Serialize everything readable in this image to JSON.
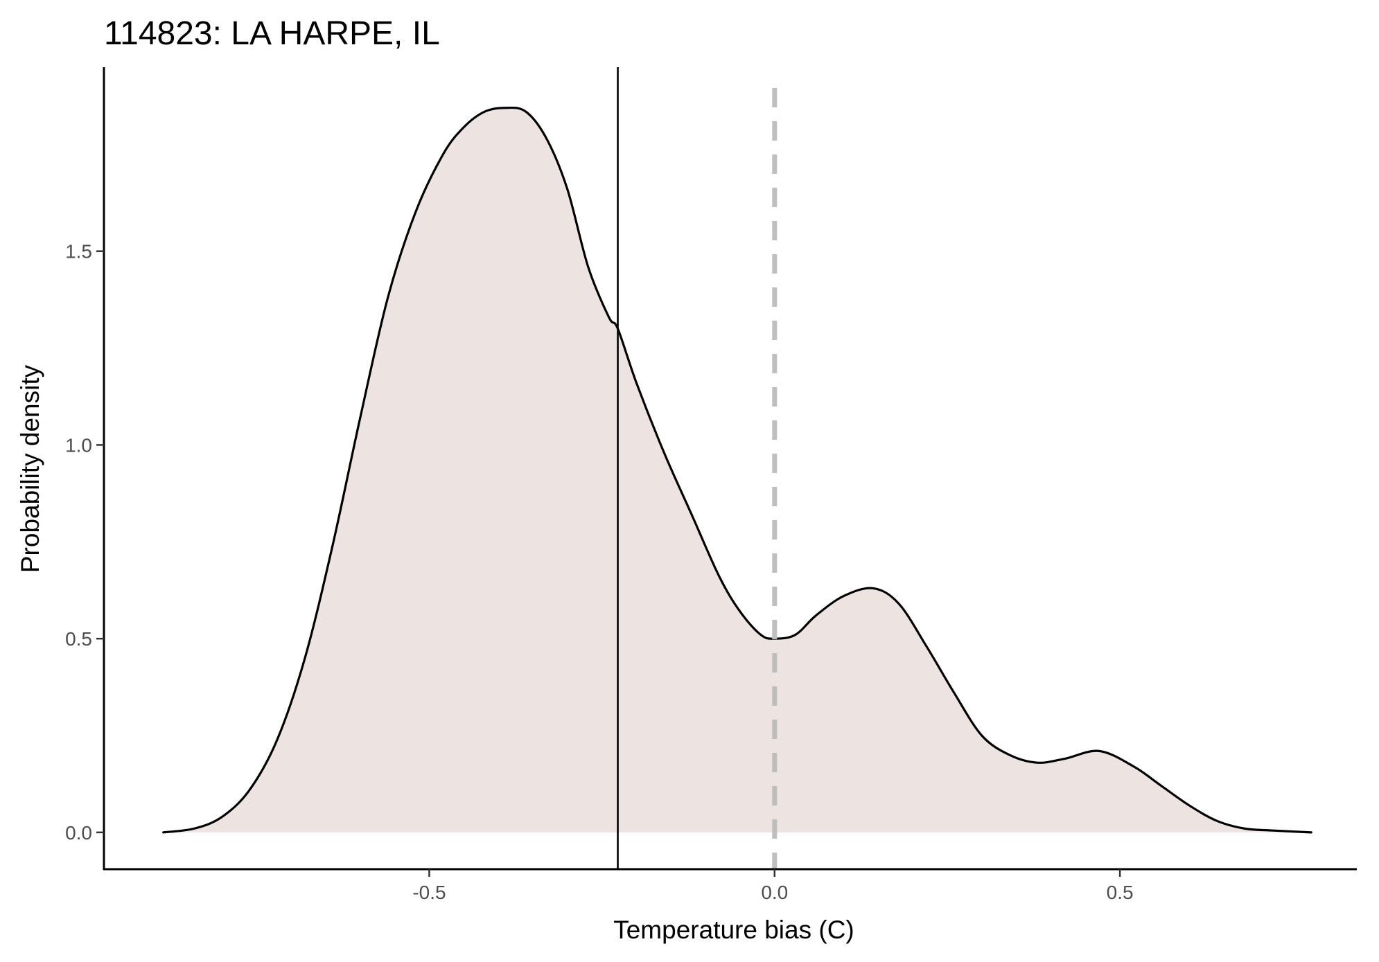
{
  "chart_data": {
    "type": "area",
    "title": "114823: LA HARPE, IL",
    "xlabel": "Temperature bias (C)",
    "ylabel": "Probability density",
    "xlim": [
      -0.971,
      0.843
    ],
    "ylim": [
      -0.095,
      1.975
    ],
    "x_ticks": [
      -0.5,
      0.0,
      0.5
    ],
    "x_tick_labels": [
      "-0.5",
      "0.0",
      "0.5"
    ],
    "y_ticks": [
      0.0,
      0.5,
      1.0,
      1.5
    ],
    "y_tick_labels": [
      "0.0",
      "0.5",
      "1.0",
      "1.5"
    ],
    "grid": false,
    "legend": "none",
    "series": [
      {
        "kind": "density",
        "x": [
          -0.885,
          -0.84,
          -0.8,
          -0.76,
          -0.72,
          -0.68,
          -0.64,
          -0.6,
          -0.56,
          -0.52,
          -0.48,
          -0.45,
          -0.42,
          -0.39,
          -0.36,
          -0.33,
          -0.3,
          -0.27,
          -0.24,
          -0.227,
          -0.2,
          -0.16,
          -0.12,
          -0.08,
          -0.05,
          -0.02,
          0.0,
          0.03,
          0.06,
          0.1,
          0.143,
          0.18,
          0.22,
          0.26,
          0.3,
          0.34,
          0.38,
          0.42,
          0.47,
          0.52,
          0.56,
          0.6,
          0.64,
          0.68,
          0.72,
          0.777
        ],
        "y": [
          0.0,
          0.01,
          0.04,
          0.11,
          0.24,
          0.45,
          0.74,
          1.07,
          1.38,
          1.6,
          1.75,
          1.82,
          1.86,
          1.87,
          1.86,
          1.79,
          1.66,
          1.46,
          1.33,
          1.3,
          1.16,
          0.98,
          0.82,
          0.66,
          0.57,
          0.51,
          0.5,
          0.51,
          0.56,
          0.61,
          0.63,
          0.59,
          0.48,
          0.36,
          0.25,
          0.2,
          0.18,
          0.19,
          0.21,
          0.17,
          0.12,
          0.07,
          0.03,
          0.01,
          0.005,
          0.0
        ],
        "fill": "#ede3e1",
        "stroke": "#000000"
      }
    ],
    "reference_lines": [
      {
        "orientation": "vertical",
        "x": -0.227,
        "style": "solid",
        "color": "#000000"
      },
      {
        "orientation": "vertical",
        "x": 0.0,
        "style": "dashed",
        "color": "#bebebe"
      }
    ],
    "colors": {
      "density_fill": "#ede3e1",
      "density_line": "#000000",
      "mean_line": "#000000",
      "zero_line": "#bebebe",
      "tick_label": "#4d4d4d"
    }
  }
}
